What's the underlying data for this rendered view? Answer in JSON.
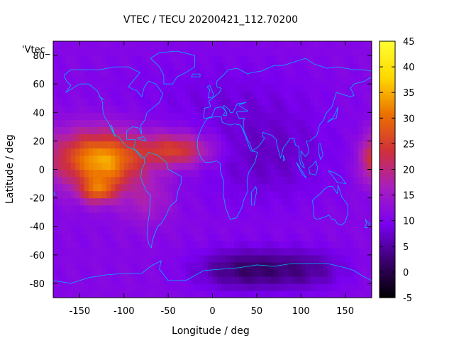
{
  "chart_data": {
    "type": "heatmap",
    "title": "VTEC / TECU 20200421_112.70200",
    "xlabel": "Longitude / deg",
    "ylabel": "Latitude / deg",
    "key_label": "'Vtec_",
    "xlim": [
      -180,
      180
    ],
    "ylim": [
      -90,
      90
    ],
    "x_ticks": [
      -150,
      -100,
      -50,
      0,
      50,
      100,
      150
    ],
    "y_ticks": [
      -80,
      -60,
      -40,
      -20,
      0,
      20,
      40,
      60,
      80
    ],
    "colorbar": {
      "range": [
        -5,
        45
      ],
      "ticks": [
        -5,
        0,
        5,
        10,
        15,
        20,
        25,
        30,
        35,
        40,
        45
      ],
      "palette": [
        "#000000",
        "#3a006e",
        "#7a00f0",
        "#a81ec0",
        "#d0303a",
        "#ec7000",
        "#ffd800",
        "#ffff30"
      ]
    },
    "coastline_color": "#00b4ff",
    "field": {
      "background_level": 11,
      "features": [
        {
          "lon": -130,
          "lat": 8,
          "sigma_lon": 38,
          "sigma_lat": 14,
          "amplitude": 20
        },
        {
          "lon": -130,
          "lat": -15,
          "sigma_lon": 14,
          "sigma_lat": 6,
          "amplitude": 13
        },
        {
          "lon": -118,
          "lat": 0,
          "sigma_lon": 20,
          "sigma_lat": 12,
          "amplitude": 5
        },
        {
          "lon": -40,
          "lat": 14,
          "sigma_lon": 28,
          "sigma_lat": 8,
          "amplitude": 14
        },
        {
          "lon": -75,
          "lat": -22,
          "sigma_lon": 20,
          "sigma_lat": 12,
          "amplitude": 5
        },
        {
          "lon": 180,
          "lat": 8,
          "sigma_lon": 10,
          "sigma_lat": 12,
          "amplitude": 13
        },
        {
          "lon": 60,
          "lat": 10,
          "sigma_lon": 55,
          "sigma_lat": 25,
          "amplitude": -4
        },
        {
          "lon": 40,
          "lat": -70,
          "sigma_lon": 40,
          "sigma_lat": 10,
          "amplitude": -9
        },
        {
          "lon": 110,
          "lat": -70,
          "sigma_lon": 30,
          "sigma_lat": 10,
          "amplitude": -5
        },
        {
          "lon": 0,
          "lat": 55,
          "sigma_lon": 80,
          "sigma_lat": 20,
          "amplitude": -2
        }
      ]
    }
  }
}
